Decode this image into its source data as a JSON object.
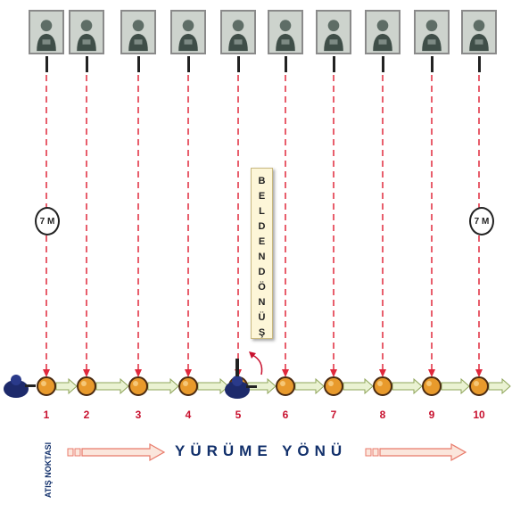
{
  "targets": [
    "target-1",
    "target-2",
    "target-3",
    "target-4",
    "target-5",
    "target-6",
    "target-7",
    "target-8",
    "target-9",
    "target-10"
  ],
  "stops": [
    "1",
    "2",
    "3",
    "4",
    "5",
    "6",
    "7",
    "8",
    "9",
    "10"
  ],
  "distance_markers": {
    "left": "7 M",
    "right": "7 M"
  },
  "turn_box": {
    "word1": [
      "B",
      "E",
      "L",
      "D",
      "E",
      "N"
    ],
    "word2": [
      "D",
      "Ö",
      "N",
      "Ü",
      "Ş"
    ]
  },
  "direction_label": "YÜRÜME YÖNÜ",
  "fire_point_label": "ATIŞ NOKTASI",
  "colors": {
    "dashed_line": "#e0283c",
    "stop_fill": "#e89a2c",
    "stop_stroke": "#4a2a10",
    "walk_arrow_fill": "#eaf2d2",
    "walk_arrow_stroke": "#8fa55a",
    "direction_arrow_fill": "#fbe6dc",
    "direction_arrow_stroke": "#e87a6a",
    "number_color": "#c8102e",
    "label_color": "#12306b"
  },
  "icons": [
    "target-photo-icon",
    "shooter-figure-icon",
    "turn-arrow-icon"
  ]
}
